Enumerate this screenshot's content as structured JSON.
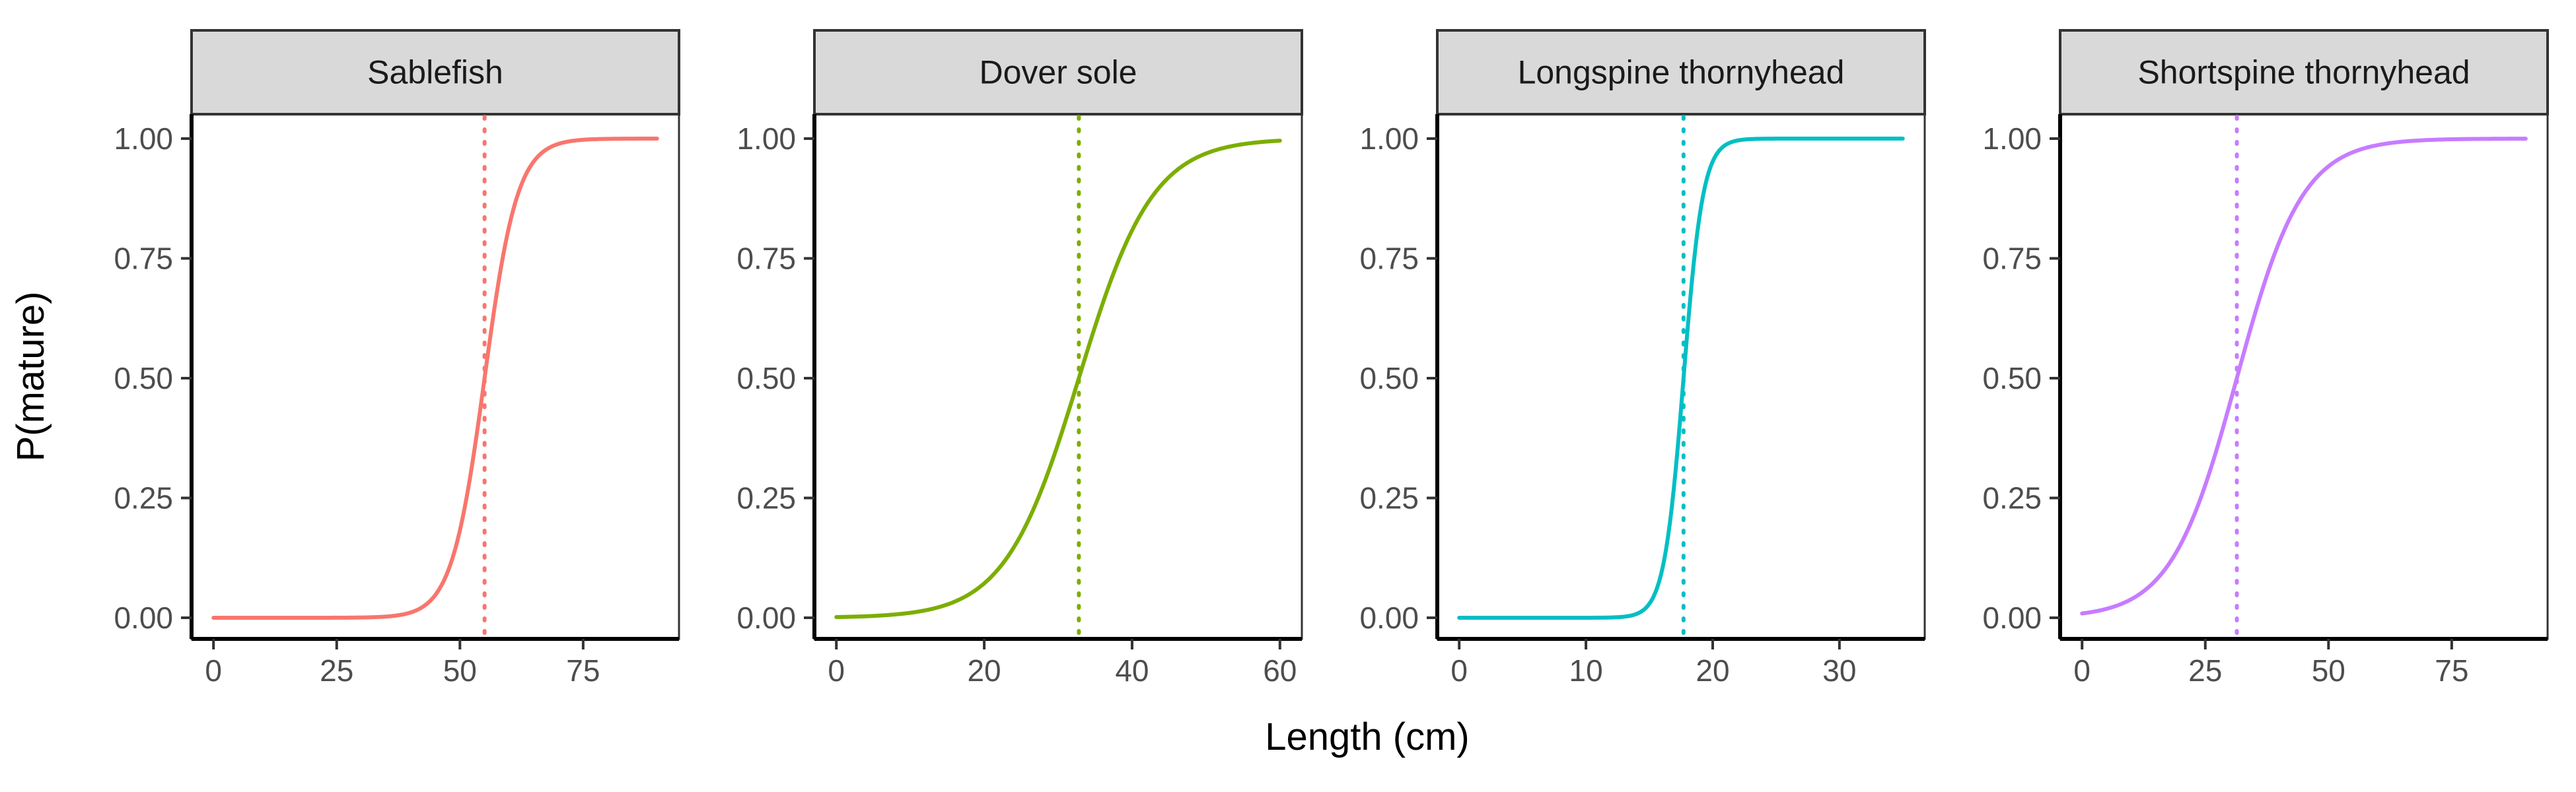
{
  "chart_data": {
    "type": "line",
    "ylabel": "P(mature)",
    "xlabel": "Length (cm)",
    "ylim": [
      0,
      1
    ],
    "y_ticks": [
      0,
      0.25,
      0.5,
      0.75,
      1
    ],
    "y_tick_labels": [
      "0.00",
      "0.25",
      "0.50",
      "0.75",
      "1.00"
    ],
    "grid": false,
    "facets": [
      {
        "title": "Sablefish",
        "color": "#F8766D",
        "xlim": [
          0,
          90
        ],
        "x_ticks": [
          0,
          25,
          50,
          75
        ],
        "l50": 55.0,
        "slope": 0.3,
        "curve_x": [
          0,
          10,
          20,
          30,
          40,
          45,
          50,
          52.5,
          55,
          57.5,
          60,
          65,
          70,
          80,
          90
        ],
        "curve_y": [
          0.0,
          0.0,
          0.0,
          0.0,
          0.011,
          0.047,
          0.182,
          0.32,
          0.5,
          0.68,
          0.818,
          0.953,
          0.989,
          0.999,
          1.0
        ]
      },
      {
        "title": "Dover sole",
        "color": "#7CAE00",
        "xlim": [
          0,
          60
        ],
        "x_ticks": [
          0,
          20,
          40,
          60
        ],
        "l50": 32.8,
        "slope": 0.2,
        "curve_x": [
          0,
          10,
          15,
          20,
          25,
          30,
          32.8,
          35,
          40,
          45,
          50,
          55,
          60
        ],
        "curve_y": [
          0.001,
          0.01,
          0.028,
          0.072,
          0.174,
          0.364,
          0.5,
          0.608,
          0.808,
          0.92,
          0.97,
          0.988,
          0.996
        ]
      },
      {
        "title": "Longspine thornyhead",
        "color": "#00BFC4",
        "xlim": [
          0,
          35
        ],
        "x_ticks": [
          0,
          10,
          20,
          30
        ],
        "l50": 17.7,
        "slope": 1.3,
        "curve_x": [
          0,
          10,
          14,
          15,
          16,
          17,
          17.7,
          18.5,
          19.5,
          20.5,
          22,
          25,
          30,
          35
        ],
        "curve_y": [
          0.0,
          0.0,
          0.008,
          0.029,
          0.099,
          0.287,
          0.5,
          0.739,
          0.912,
          0.974,
          0.996,
          1.0,
          1.0,
          1.0
        ]
      },
      {
        "title": "Shortspine thornyhead",
        "color": "#C77CFF",
        "xlim": [
          0,
          90
        ],
        "x_ticks": [
          0,
          25,
          50,
          75
        ],
        "l50": 31.4,
        "slope": 0.15,
        "curve_x": [
          0,
          10,
          15,
          20,
          25,
          30,
          31.4,
          35,
          40,
          45,
          50,
          55,
          60,
          70,
          80,
          90
        ],
        "curve_y": [
          0.009,
          0.039,
          0.079,
          0.153,
          0.277,
          0.448,
          0.5,
          0.632,
          0.784,
          0.885,
          0.942,
          0.972,
          0.986,
          0.997,
          0.999,
          1.0
        ]
      }
    ]
  }
}
